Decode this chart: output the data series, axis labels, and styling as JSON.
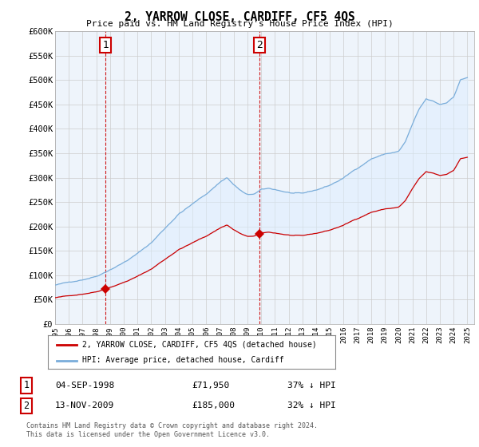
{
  "title": "2, YARROW CLOSE, CARDIFF, CF5 4QS",
  "subtitle": "Price paid vs. HM Land Registry's House Price Index (HPI)",
  "ylim": [
    0,
    600000
  ],
  "yticks": [
    0,
    50000,
    100000,
    150000,
    200000,
    250000,
    300000,
    350000,
    400000,
    450000,
    500000,
    550000,
    600000
  ],
  "ytick_labels": [
    "£0",
    "£50K",
    "£100K",
    "£150K",
    "£200K",
    "£250K",
    "£300K",
    "£350K",
    "£400K",
    "£450K",
    "£500K",
    "£550K",
    "£600K"
  ],
  "sale1_price": 71950,
  "sale1_year": 1998.67,
  "sale2_price": 185000,
  "sale2_year": 2009.87,
  "sale1_date": "04-SEP-1998",
  "sale2_date": "13-NOV-2009",
  "sale1_pct": "37% ↓ HPI",
  "sale2_pct": "32% ↓ HPI",
  "legend_label_red": "2, YARROW CLOSE, CARDIFF, CF5 4QS (detached house)",
  "legend_label_blue": "HPI: Average price, detached house, Cardiff",
  "footnote1": "Contains HM Land Registry data © Crown copyright and database right 2024.",
  "footnote2": "This data is licensed under the Open Government Licence v3.0.",
  "red_color": "#cc0000",
  "blue_color": "#7aadda",
  "blue_fill": "#ddeeff",
  "grid_color": "#cccccc",
  "bg_color": "#ffffff"
}
